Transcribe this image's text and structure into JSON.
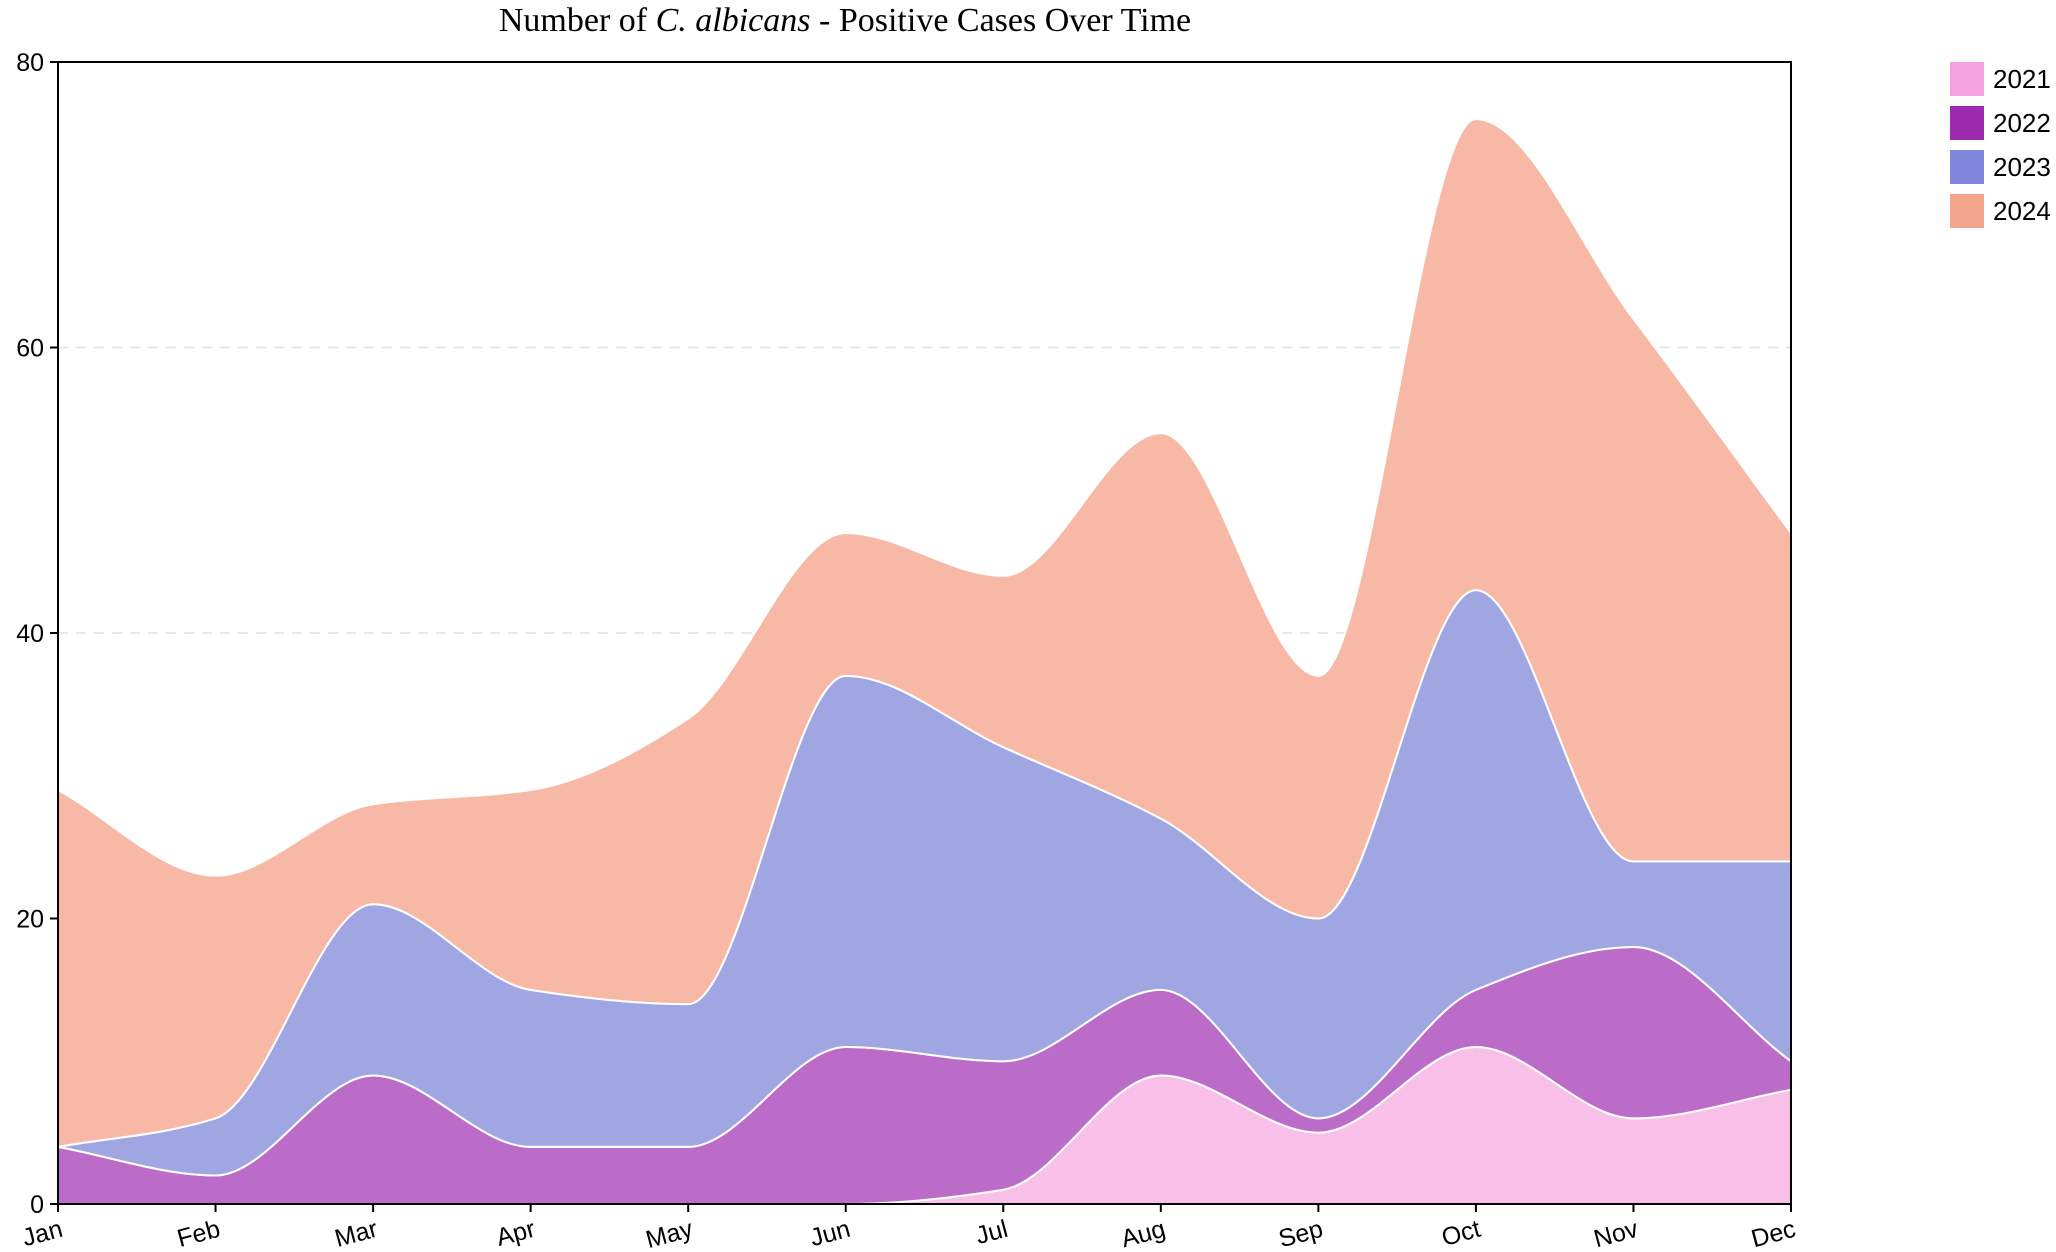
{
  "chart_data": {
    "type": "area",
    "stacked": true,
    "title_parts": [
      {
        "text": "Number of ",
        "italic": false
      },
      {
        "text": "C. albicans",
        "italic": true
      },
      {
        "text": " - Positive Cases Over Time",
        "italic": false
      }
    ],
    "categories": [
      "Jan",
      "Feb",
      "Mar",
      "Apr",
      "May",
      "Jun",
      "Jul",
      "Aug",
      "Sep",
      "Oct",
      "Nov",
      "Dec"
    ],
    "series": [
      {
        "name": "2021",
        "color": "#f5a3df",
        "fill": "#f8c0e8",
        "values": [
          0,
          0,
          0,
          0,
          0,
          0,
          1,
          9,
          5,
          11,
          6,
          8
        ]
      },
      {
        "name": "2022",
        "color": "#9c2bb0",
        "fill": "#bb6cc8",
        "values": [
          4,
          2,
          9,
          4,
          4,
          11,
          9,
          6,
          1,
          4,
          12,
          2
        ]
      },
      {
        "name": "2023",
        "color": "#7f86dc",
        "fill": "#a0a6e2",
        "values": [
          0,
          4,
          12,
          11,
          10,
          26,
          22,
          12,
          14,
          28,
          6,
          14
        ]
      },
      {
        "name": "2024",
        "color": "#f3a58b",
        "fill": "#f7b9a6",
        "values": [
          25,
          17,
          7,
          14,
          20,
          10,
          12,
          27,
          17,
          33,
          38,
          23
        ]
      }
    ],
    "ylim": [
      0,
      80
    ],
    "yticks": [
      0,
      20,
      40,
      60,
      80
    ],
    "grid": {
      "horizontal": true,
      "style": "dashed"
    },
    "legend": {
      "position": "top-right"
    }
  }
}
